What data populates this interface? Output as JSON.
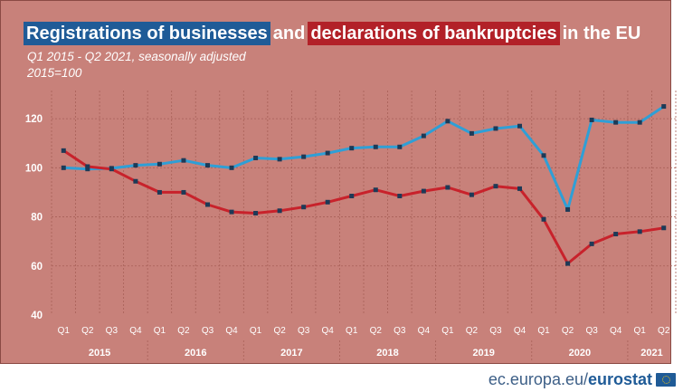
{
  "header": {
    "title_part1": "Registrations of businesses",
    "title_part2": "and",
    "title_part3": "declarations of bankruptcies",
    "title_part4": "in the EU",
    "subtitle": "Q1 2015  - Q2 2021, seasonally adjusted",
    "note": "2015=100"
  },
  "footer": {
    "source_prefix": "ec.europa.eu/",
    "source_brand": "eurostat"
  },
  "colors": {
    "panel": "#c8817a",
    "registrations": "#2f9fd6",
    "bankruptcies": "#c8222b",
    "title_blue": "#1f5b97",
    "title_red": "#b22128"
  },
  "chart_data": {
    "type": "line",
    "x": [
      "Q1",
      "Q2",
      "Q3",
      "Q4",
      "Q1",
      "Q2",
      "Q3",
      "Q4",
      "Q1",
      "Q2",
      "Q3",
      "Q4",
      "Q1",
      "Q2",
      "Q3",
      "Q4",
      "Q1",
      "Q2",
      "Q3",
      "Q4",
      "Q1",
      "Q2",
      "Q3",
      "Q4",
      "Q1",
      "Q2"
    ],
    "years": [
      {
        "label": "2015",
        "quarters": 4
      },
      {
        "label": "2016",
        "quarters": 4
      },
      {
        "label": "2017",
        "quarters": 4
      },
      {
        "label": "2018",
        "quarters": 4
      },
      {
        "label": "2019",
        "quarters": 4
      },
      {
        "label": "2020",
        "quarters": 4
      },
      {
        "label": "2021",
        "quarters": 2
      }
    ],
    "series": [
      {
        "color": "#2f9fd6",
        "values": [
          100,
          99.5,
          99.8,
          101,
          101.5,
          103,
          101,
          100,
          104,
          103.5,
          104.5,
          106,
          108,
          108.5,
          108.5,
          113,
          119,
          114,
          116,
          117,
          105,
          83,
          119.5,
          118.5,
          118.5,
          125
        ]
      },
      {
        "color": "#c8222b",
        "values": [
          107,
          100.5,
          99.5,
          94.5,
          90,
          90,
          85,
          82,
          81.5,
          82.5,
          84,
          86,
          88.5,
          91,
          88.5,
          90.5,
          92,
          89,
          92.5,
          91.5,
          79,
          61,
          69,
          73,
          74,
          75.5
        ]
      }
    ],
    "xlabel": "",
    "ylabel": "",
    "yticks": [
      40,
      60,
      80,
      100,
      120
    ],
    "ylim": [
      40,
      130
    ],
    "grid": true
  }
}
